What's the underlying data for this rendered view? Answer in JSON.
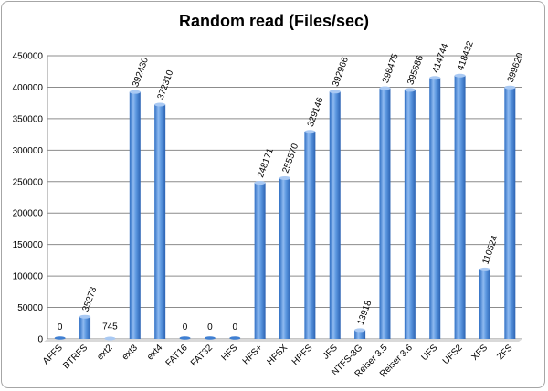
{
  "chart_data": {
    "type": "bar",
    "title": "Random read (Files/sec)",
    "xlabel": "",
    "ylabel": "",
    "categories": [
      "AFFS",
      "BTRFS",
      "ext2",
      "ext3",
      "ext4",
      "FAT16",
      "FAT32",
      "HFS",
      "HFS+",
      "HFSX",
      "HPFS",
      "JFS",
      "NTFS-3G",
      "Reiser 3.5",
      "Reiser 3.6",
      "UFS",
      "UFS2",
      "XFS",
      "ZFS"
    ],
    "values": [
      0,
      35273,
      745,
      392430,
      372310,
      0,
      0,
      0,
      248171,
      255570,
      329146,
      392966,
      13918,
      398475,
      395686,
      414744,
      418432,
      110524,
      399620
    ],
    "data_labels": [
      "0",
      "35273",
      "745",
      "392430",
      "372310",
      "0",
      "0",
      "0",
      "248171",
      "255570",
      "329146",
      "392966",
      "13918",
      "398475",
      "395686",
      "414744",
      "418432",
      "110524",
      "399620"
    ],
    "ylim": [
      0,
      450000
    ],
    "yticks": [
      0,
      50000,
      100000,
      150000,
      200000,
      250000,
      300000,
      350000,
      400000,
      450000
    ],
    "ytick_labels": [
      "0",
      "50000",
      "100000",
      "150000",
      "200000",
      "250000",
      "300000",
      "350000",
      "400000",
      "450000"
    ],
    "grid": true,
    "legend": "none",
    "bar_color": "#4f8fde",
    "grid_color": "#8c8c8c"
  }
}
